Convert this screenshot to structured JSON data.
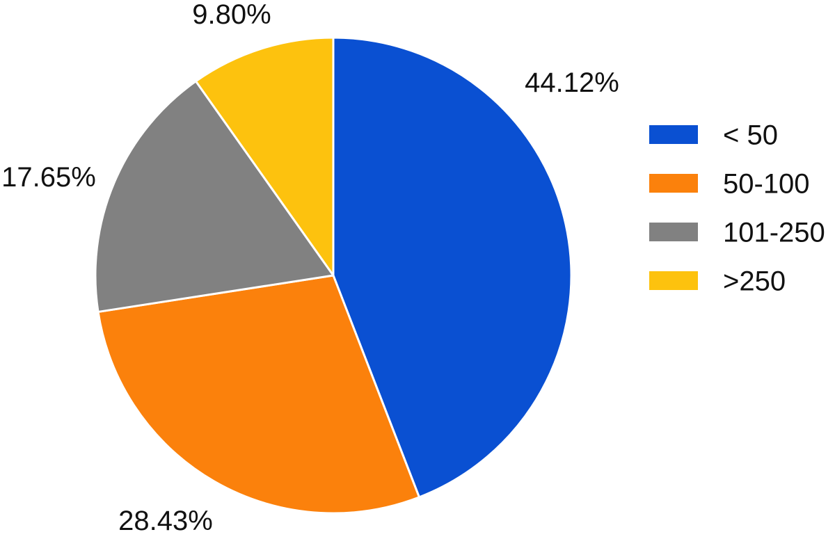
{
  "chart_data": {
    "type": "pie",
    "title": "",
    "slices": [
      {
        "label": "< 50",
        "value": 44.12,
        "value_label": "44.12%",
        "color": "#0a50d2"
      },
      {
        "label": "50-100",
        "value": 28.43,
        "value_label": "28.43%",
        "color": "#fb810c"
      },
      {
        "label": "101-250",
        "value": 17.65,
        "value_label": "17.65%",
        "color": "#818181"
      },
      {
        "label": ">250",
        "value": 9.8,
        "value_label": "9.80%",
        "color": "#fdc20e"
      }
    ],
    "start_angle_deg": 0,
    "direction": "clockwise",
    "legend_position": "right"
  }
}
